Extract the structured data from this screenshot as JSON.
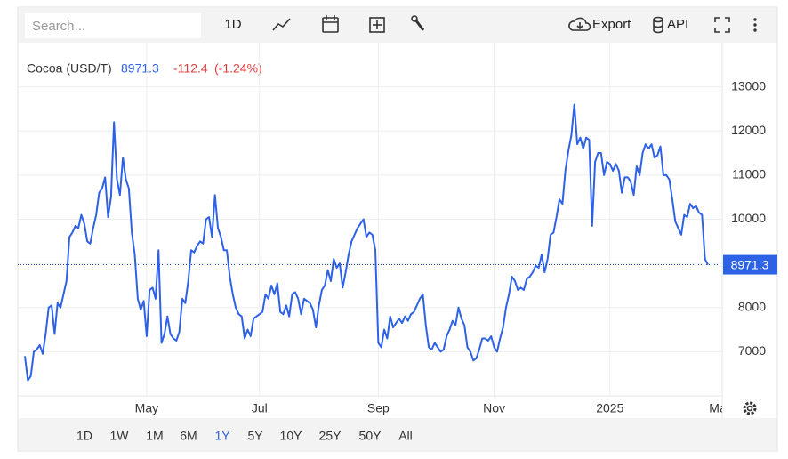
{
  "toolbar": {
    "search_placeholder": "Search...",
    "interval": "1D",
    "export": "Export",
    "api": "API"
  },
  "range_selector": {
    "options": [
      "1D",
      "1W",
      "1M",
      "6M",
      "1Y",
      "5Y",
      "10Y",
      "25Y",
      "50Y",
      "All"
    ],
    "active": "1Y"
  },
  "chart_data": {
    "type": "line",
    "title": "Cocoa (USD/T)",
    "change": "-112.4",
    "change_percent": "(-1.24%)",
    "categories": [
      null,
      null,
      null,
      null,
      null,
      null,
      null,
      null,
      null,
      null,
      null,
      null,
      null,
      null,
      null,
      null,
      null,
      null,
      null,
      null,
      null,
      null,
      null,
      null,
      null,
      null,
      null,
      null,
      null,
      null,
      null,
      null,
      null,
      null,
      null,
      null,
      null,
      null,
      null,
      null,
      null,
      "May",
      null,
      null,
      null,
      null,
      null,
      null,
      null,
      null,
      null,
      null,
      null,
      null,
      null,
      null,
      null,
      null,
      null,
      null,
      null,
      null,
      null,
      null,
      null,
      null,
      null,
      null,
      null,
      null,
      null,
      null,
      null,
      null,
      null,
      null,
      null,
      null,
      null,
      "Jul",
      null,
      null,
      null,
      null,
      null,
      null,
      null,
      null,
      null,
      null,
      null,
      null,
      null,
      null,
      null,
      null,
      null,
      null,
      null,
      null,
      null,
      null,
      null,
      null,
      null,
      null,
      null,
      null,
      null,
      null,
      null,
      null,
      null,
      null,
      null,
      null,
      null,
      null,
      null,
      "Sep",
      null,
      null,
      null,
      null,
      null,
      null,
      null,
      null,
      null,
      null,
      null,
      null,
      null,
      null,
      null,
      null,
      null,
      null,
      null,
      null,
      null,
      null,
      null,
      null,
      null,
      null,
      null,
      null,
      null,
      null,
      null,
      null,
      null,
      null,
      null,
      null,
      null,
      null,
      "Nov",
      null,
      null,
      null,
      null,
      null,
      null,
      null,
      null,
      null,
      null,
      null,
      null,
      null,
      null,
      null,
      null,
      null,
      null,
      null,
      null,
      null,
      null,
      null,
      null,
      null,
      null,
      null,
      null,
      null,
      null,
      null,
      null,
      null,
      null,
      null,
      null,
      null,
      null,
      "2025",
      null,
      null,
      null,
      null,
      null,
      null,
      null,
      null,
      null,
      null,
      null,
      null,
      null,
      null,
      null,
      null,
      null,
      null,
      null,
      null,
      null,
      null,
      null,
      null,
      null,
      null,
      null,
      null,
      null,
      null,
      null,
      null,
      null,
      null,
      null,
      null,
      "Mar"
    ],
    "series": [
      {
        "name": "Cocoa",
        "color": "#2e62e6",
        "values": [
          6900,
          6350,
          6450,
          7000,
          7050,
          7150,
          6950,
          7400,
          8000,
          8050,
          7400,
          8100,
          8000,
          8300,
          8600,
          9600,
          9700,
          9850,
          9800,
          10100,
          9900,
          9500,
          9450,
          9800,
          10100,
          10600,
          10700,
          10950,
          10050,
          10500,
          12200,
          10900,
          10550,
          11400,
          10900,
          10700,
          9700,
          9200,
          8200,
          7950,
          8150,
          7350,
          8400,
          8450,
          8200,
          9300,
          7200,
          7400,
          7800,
          7400,
          7300,
          7250,
          7450,
          8200,
          8100,
          8600,
          9300,
          9250,
          9400,
          9500,
          9450,
          10000,
          10050,
          9600,
          10550,
          9800,
          9600,
          9300,
          9300,
          8700,
          8300,
          8000,
          7850,
          7800,
          7300,
          7500,
          7350,
          7750,
          7800,
          7850,
          7900,
          8300,
          8200,
          8500,
          8300,
          8550,
          7900,
          7850,
          8050,
          7800,
          8300,
          8350,
          8200,
          7850,
          8200,
          8150,
          8100,
          7950,
          7550,
          8050,
          8400,
          8500,
          8850,
          8600,
          9100,
          8900,
          9000,
          8450,
          8800,
          9200,
          9500,
          9650,
          9800,
          9900,
          10000,
          9600,
          9700,
          9650,
          9300,
          7200,
          7100,
          7500,
          7300,
          7800,
          7550,
          7650,
          7750,
          7650,
          7800,
          7700,
          7850,
          7900,
          8050,
          8200,
          8300,
          7600,
          7100,
          7050,
          7200,
          7100,
          7000,
          7050,
          7350,
          7500,
          7700,
          7600,
          8000,
          7750,
          7600,
          7100,
          7000,
          6800,
          6850,
          7050,
          7300,
          7300,
          7250,
          7350,
          7100,
          7000,
          7300,
          7550,
          8000,
          8300,
          8700,
          8600,
          8400,
          8450,
          8400,
          8650,
          8700,
          8800,
          8950,
          8900,
          9200,
          8800,
          9100,
          9650,
          9700,
          10050,
          10450,
          10350,
          11100,
          11550,
          11900,
          12600,
          11700,
          11850,
          11600,
          11850,
          11800,
          9850,
          11300,
          11500,
          11500,
          11000,
          11300,
          11250,
          11100,
          11250,
          11100,
          10600,
          10950,
          10950,
          10850,
          10550,
          11200,
          11000,
          11500,
          11700,
          11600,
          11700,
          11400,
          11450,
          11650,
          11000,
          11000,
          10900,
          10450,
          9950,
          9800,
          9650,
          10100,
          10050,
          10350,
          10250,
          10300,
          10150,
          10100,
          9100,
          8971.3,
          null,
          null,
          null,
          null
        ]
      }
    ],
    "ylim": [
      6000,
      14000
    ],
    "yticks": [
      7000,
      8000,
      9000,
      10000,
      11000,
      12000,
      13000
    ],
    "grid": true,
    "last_price_line": true
  }
}
